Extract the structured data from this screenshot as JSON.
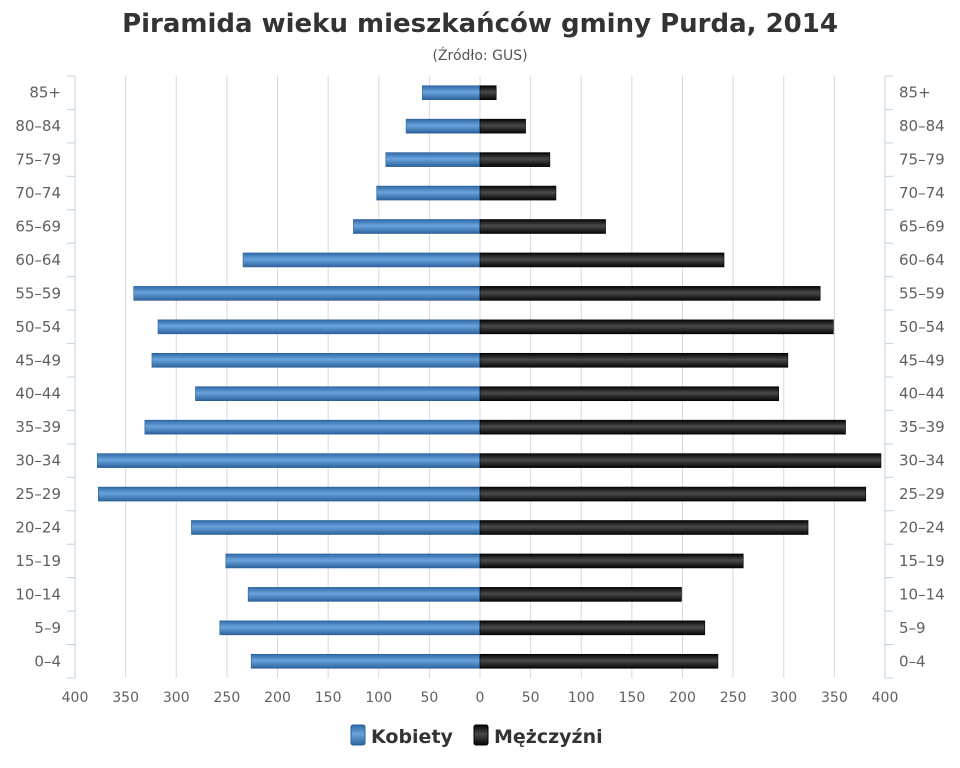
{
  "chart_data": {
    "type": "bar",
    "orientation": "horizontal",
    "title": "Piramida wieku mieszkańców gminy Purda, 2014",
    "subtitle": "(Źródło: GUS)",
    "categories": [
      "85+",
      "80–84",
      "75–79",
      "70–74",
      "65–69",
      "60–64",
      "55–59",
      "50–54",
      "45–49",
      "40–44",
      "35–39",
      "30–34",
      "25–29",
      "20–24",
      "15–19",
      "10–14",
      "5–9",
      "0–4"
    ],
    "xlim": [
      -400,
      400
    ],
    "x_ticks": [
      400,
      350,
      300,
      250,
      200,
      150,
      100,
      50,
      0,
      50,
      100,
      150,
      200,
      250,
      300,
      350,
      400
    ],
    "grid": true,
    "legend_position": "bottom-center",
    "series": [
      {
        "name": "Kobiety",
        "direction": "left",
        "color": "#3f7fc0",
        "values": [
          57,
          73,
          93,
          102,
          125,
          234,
          342,
          318,
          324,
          281,
          331,
          378,
          377,
          285,
          251,
          229,
          257,
          226
        ]
      },
      {
        "name": "Mężczyźni",
        "direction": "right",
        "color": "#1a1a1a",
        "values": [
          16,
          45,
          69,
          75,
          124,
          241,
          336,
          349,
          304,
          295,
          361,
          396,
          381,
          324,
          260,
          199,
          222,
          235
        ]
      }
    ]
  }
}
